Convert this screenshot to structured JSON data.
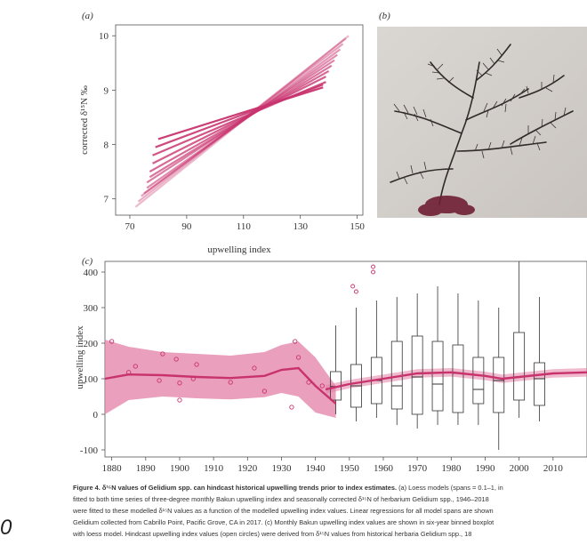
{
  "panels": {
    "a": {
      "label": "(a)"
    },
    "b": {
      "label": "(b)"
    },
    "c": {
      "label": "(c)"
    }
  },
  "colors": {
    "accent": "#c8336e",
    "band": "#e37fa6",
    "box": "#333333"
  },
  "caption": {
    "lead": "Figure 4. δ¹⁵N values of Gelidium spp. can hindcast historical upwelling trends prior to index estimates.",
    "line1_rest": " (a) Loess models (spans = 0.1–1, in",
    "line2": "fitted to both time series of three-degree monthly Bakun upwelling index and seasonally corrected δ¹⁵N of herbarium Gelidium spp., 1946–2018",
    "line3": "were fitted to these modelled δ¹⁵N values as a function of the modelled upwelling index values. Linear regressions for all model spans are shown",
    "line4": "Gelidium collected from Cabrillo Point, Pacific Grove, CA in 2017. (c) Monthly Bakun upwelling index values are shown in six-year binned boxplot",
    "line5": "with loess model. Hindcast upwelling index values (open circles) were derived from δ¹⁵N values from historical herbaria Gelidium spp., 18"
  },
  "side_mark": "0",
  "chart_data": [
    {
      "panel": "a",
      "type": "line",
      "xlabel": "upwelling index",
      "ylabel": "corrected δ¹⁵N ‰",
      "xlim": [
        65,
        152
      ],
      "ylim": [
        6.7,
        10.2
      ],
      "x_ticks": [
        70,
        90,
        110,
        130,
        150
      ],
      "y_ticks": [
        7,
        8,
        9,
        10
      ],
      "pivot": [
        115,
        8.65
      ],
      "series": [
        {
          "x": [
            72,
            147
          ],
          "y": [
            6.85,
            10.0
          ]
        },
        {
          "x": [
            73,
            146
          ],
          "y": [
            6.95,
            9.95
          ]
        },
        {
          "x": [
            74,
            145
          ],
          "y": [
            7.05,
            9.85
          ]
        },
        {
          "x": [
            75,
            144
          ],
          "y": [
            7.1,
            9.75
          ]
        },
        {
          "x": [
            76,
            143
          ],
          "y": [
            7.2,
            9.65
          ]
        },
        {
          "x": [
            76,
            142
          ],
          "y": [
            7.3,
            9.55
          ]
        },
        {
          "x": [
            77,
            141
          ],
          "y": [
            7.4,
            9.45
          ]
        },
        {
          "x": [
            77,
            140
          ],
          "y": [
            7.5,
            9.35
          ]
        },
        {
          "x": [
            78,
            139
          ],
          "y": [
            7.65,
            9.25
          ]
        },
        {
          "x": [
            78,
            139
          ],
          "y": [
            7.8,
            9.15
          ]
        },
        {
          "x": [
            79,
            138
          ],
          "y": [
            7.95,
            9.1
          ]
        },
        {
          "x": [
            80,
            138
          ],
          "y": [
            8.1,
            9.05
          ]
        }
      ]
    },
    {
      "panel": "c",
      "type": "line",
      "xlabel": "",
      "ylabel": "upwelling index",
      "xlim": [
        1878,
        2020
      ],
      "ylim": [
        -120,
        430
      ],
      "x_ticks": [
        1880,
        1890,
        1900,
        1910,
        1920,
        1930,
        1940,
        1950,
        1960,
        1970,
        1980,
        1990,
        2000,
        2010
      ],
      "y_ticks": [
        -100,
        0,
        100,
        200,
        300,
        400
      ],
      "hindcast_line": {
        "x": [
          1878,
          1885,
          1895,
          1905,
          1915,
          1925,
          1930,
          1935,
          1940,
          1946
        ],
        "y": [
          100,
          112,
          110,
          105,
          102,
          108,
          125,
          130,
          80,
          30
        ]
      },
      "hindcast_band": {
        "x": [
          1878,
          1885,
          1895,
          1905,
          1915,
          1925,
          1930,
          1935,
          1940,
          1946
        ],
        "upper": [
          210,
          190,
          175,
          170,
          165,
          175,
          195,
          205,
          160,
          80
        ],
        "lower": [
          0,
          40,
          50,
          45,
          42,
          48,
          60,
          50,
          5,
          -10
        ]
      },
      "hindcast_points": [
        {
          "x": 1880,
          "y": 205
        },
        {
          "x": 1885,
          "y": 118
        },
        {
          "x": 1887,
          "y": 135
        },
        {
          "x": 1894,
          "y": 95
        },
        {
          "x": 1895,
          "y": 170
        },
        {
          "x": 1899,
          "y": 155
        },
        {
          "x": 1900,
          "y": 40
        },
        {
          "x": 1900,
          "y": 88
        },
        {
          "x": 1904,
          "y": 100
        },
        {
          "x": 1905,
          "y": 140
        },
        {
          "x": 1915,
          "y": 90
        },
        {
          "x": 1922,
          "y": 130
        },
        {
          "x": 1925,
          "y": 65
        },
        {
          "x": 1933,
          "y": 20
        },
        {
          "x": 1934,
          "y": 205
        },
        {
          "x": 1935,
          "y": 160
        },
        {
          "x": 1938,
          "y": 90
        },
        {
          "x": 1942,
          "y": 80
        }
      ],
      "boxplots": [
        {
          "x": 1946,
          "low": 0,
          "q1": 40,
          "median": 78,
          "q3": 120,
          "high": 250
        },
        {
          "x": 1952,
          "low": -20,
          "q1": 20,
          "median": 80,
          "q3": 140,
          "high": 300
        },
        {
          "x": 1958,
          "low": -10,
          "q1": 30,
          "median": 95,
          "q3": 160,
          "high": 320
        },
        {
          "x": 1964,
          "low": -30,
          "q1": 15,
          "median": 80,
          "q3": 205,
          "high": 330
        },
        {
          "x": 1970,
          "low": -40,
          "q1": 0,
          "median": 105,
          "q3": 220,
          "high": 340
        },
        {
          "x": 1976,
          "low": -30,
          "q1": 10,
          "median": 85,
          "q3": 205,
          "high": 360
        },
        {
          "x": 1982,
          "low": -30,
          "q1": 5,
          "median": 115,
          "q3": 195,
          "high": 340
        },
        {
          "x": 1988,
          "low": -30,
          "q1": 30,
          "median": 70,
          "q3": 160,
          "high": 320
        },
        {
          "x": 1994,
          "low": -100,
          "q1": 5,
          "median": 95,
          "q3": 160,
          "high": 300
        },
        {
          "x": 2000,
          "low": -10,
          "q1": 40,
          "median": 105,
          "q3": 230,
          "high": 430
        },
        {
          "x": 2006,
          "low": -20,
          "q1": 25,
          "median": 100,
          "q3": 145,
          "high": 330
        }
      ],
      "outliers": [
        {
          "x": 1951,
          "y": 360
        },
        {
          "x": 1952,
          "y": 345
        },
        {
          "x": 1957,
          "y": 415
        },
        {
          "x": 1957,
          "y": 400
        }
      ],
      "modern_line": {
        "x": [
          1943,
          1950,
          1960,
          1970,
          1980,
          1990,
          1995,
          2000,
          2010,
          2020
        ],
        "y": [
          70,
          85,
          100,
          115,
          118,
          108,
          100,
          105,
          115,
          118
        ]
      }
    }
  ]
}
